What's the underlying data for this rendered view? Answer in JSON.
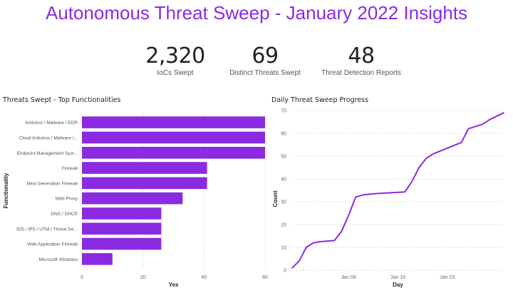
{
  "page": {
    "title": "Autonomous Threat Sweep - January 2022 Insights"
  },
  "colors": {
    "title": "#8a2be2",
    "bar": "#8a2be2",
    "line": "#8a2be2"
  },
  "kpis": [
    {
      "value": "2,320",
      "label": "IoCs Swept"
    },
    {
      "value": "69",
      "label": "Distinct Threats Swept"
    },
    {
      "value": "48",
      "label": "Threat Detection Reports"
    }
  ],
  "chart_data": [
    {
      "type": "bar",
      "orientation": "horizontal",
      "title": "Threats Swept - Top Functionalities",
      "xlabel": "Yes",
      "ylabel": "Functionality",
      "xlim": [
        0,
        60
      ],
      "xticks": [
        "0",
        "20",
        "40",
        "60"
      ],
      "categories": [
        "Antivirus / Malware / EDR",
        "Cloud Antivirus / Malware /...",
        "Endpoint Management Syst...",
        "Firewall",
        "Next Generation Firewall",
        "Web Proxy",
        "DNS / DHCP",
        "IDS / IPS / UTM / Threat De...",
        "Web Application Firewall",
        "Microsoft Windows"
      ],
      "values": [
        60,
        60,
        60,
        41,
        41,
        33,
        26,
        26,
        26,
        10
      ]
    },
    {
      "type": "line",
      "title": "Daily Threat Sweep Progress",
      "xlabel": "Day",
      "ylabel": "Count",
      "ylim": [
        0,
        70
      ],
      "yticks": [
        "0",
        "10",
        "20",
        "30",
        "40",
        "50",
        "60",
        "70"
      ],
      "xticks": [
        {
          "date": "2022-01-09",
          "label": "Jan 09"
        },
        {
          "date": "2022-01-16",
          "label": "Jan 16"
        },
        {
          "date": "2022-01-23",
          "label": "Jan 23"
        }
      ],
      "xlim": [
        "2022-01-01",
        "2022-01-31"
      ],
      "x": [
        "2022-01-01",
        "2022-01-02",
        "2022-01-03",
        "2022-01-04",
        "2022-01-05",
        "2022-01-07",
        "2022-01-08",
        "2022-01-09",
        "2022-01-10",
        "2022-01-11",
        "2022-01-12",
        "2022-01-13",
        "2022-01-17",
        "2022-01-18",
        "2022-01-19",
        "2022-01-20",
        "2022-01-21",
        "2022-01-25",
        "2022-01-26",
        "2022-01-28",
        "2022-01-29",
        "2022-01-31"
      ],
      "values": [
        1,
        4,
        10,
        12,
        12.5,
        13,
        17,
        24,
        32,
        33,
        33.3,
        33.6,
        34.3,
        39,
        45,
        49,
        51,
        56,
        62,
        64,
        66,
        69
      ]
    }
  ]
}
